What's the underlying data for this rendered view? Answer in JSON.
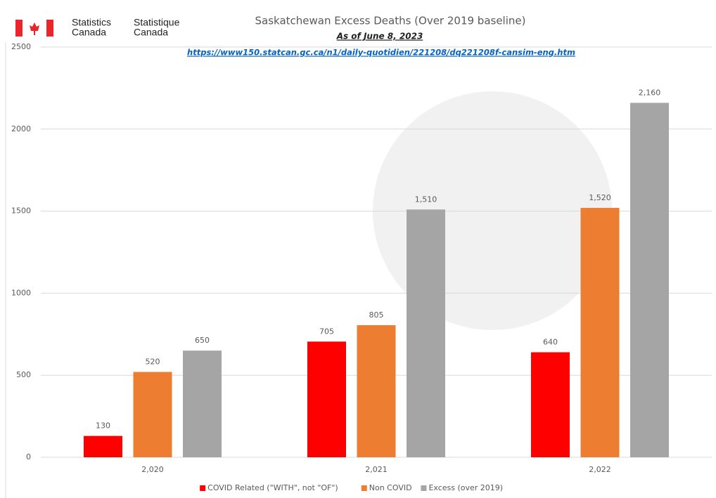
{
  "logo": {
    "en": [
      "Statistics",
      "Canada"
    ],
    "fr": [
      "Statistique",
      "Canada"
    ]
  },
  "chart_data": {
    "type": "bar",
    "title": "Saskatchewan Excess Deaths (Over 2019 baseline)",
    "subtitle": "As of June 8, 2023",
    "source": "https://www150.statcan.gc.ca/n1/daily-quotidien/221208/dq221208f-cansim-eng.htm",
    "categories": [
      "2,020",
      "2,021",
      "2,022"
    ],
    "series": [
      {
        "name": "COVID Related (\"WITH\", not \"OF\")",
        "color": "#ff0000",
        "values": [
          130,
          705,
          640
        ]
      },
      {
        "name": "Non COVID",
        "color": "#ed7d31",
        "values": [
          520,
          805,
          1520
        ],
        "value_labels": [
          "520",
          "805",
          "1,520"
        ]
      },
      {
        "name": "Excess (over 2019)",
        "color": "#a5a5a5",
        "values": [
          650,
          1510,
          2160
        ],
        "value_labels": [
          "650",
          "1,510",
          "2,160"
        ]
      }
    ],
    "ylim": [
      0,
      2500
    ],
    "yticks": [
      0,
      500,
      1000,
      1500,
      2000,
      2500
    ],
    "grid": true,
    "legend": "bottom"
  }
}
